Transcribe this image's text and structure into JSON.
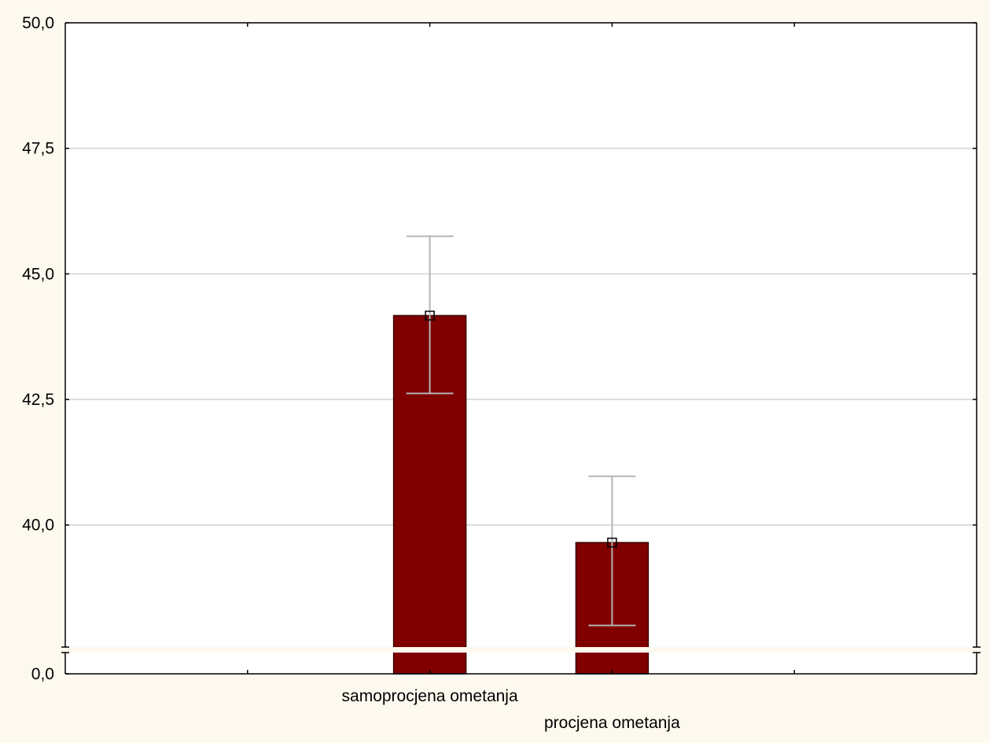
{
  "chart_data": {
    "type": "bar",
    "title": "",
    "xlabel": "",
    "ylabel": "",
    "categories": [
      "samoprocjena ometanja",
      "procjena ometanja"
    ],
    "values": [
      44.17,
      39.65
    ],
    "error_bars": [
      {
        "lower": 42.62,
        "upper": 45.75
      },
      {
        "lower": 38.0,
        "upper": 40.97
      }
    ],
    "ylim": [
      0,
      50
    ],
    "axis_break": {
      "from": 0.0,
      "to": 37.6
    },
    "y_ticks": [
      {
        "value": 0.0,
        "label": "0,0"
      },
      {
        "value": 40.0,
        "label": "40,0"
      },
      {
        "value": 42.5,
        "label": "42,5"
      },
      {
        "value": 45.0,
        "label": "45,0"
      },
      {
        "value": 47.5,
        "label": "47,5"
      },
      {
        "value": 50.0,
        "label": "50,0"
      }
    ],
    "grid": true,
    "legend": "none",
    "colors": {
      "bar_fill": "#800000",
      "bar_stroke": "#3a0000",
      "error_bar": "#b4b4b4",
      "grid": "#d2d2d2",
      "background": "#fdf9ee",
      "plot_background": "#ffffff"
    }
  }
}
